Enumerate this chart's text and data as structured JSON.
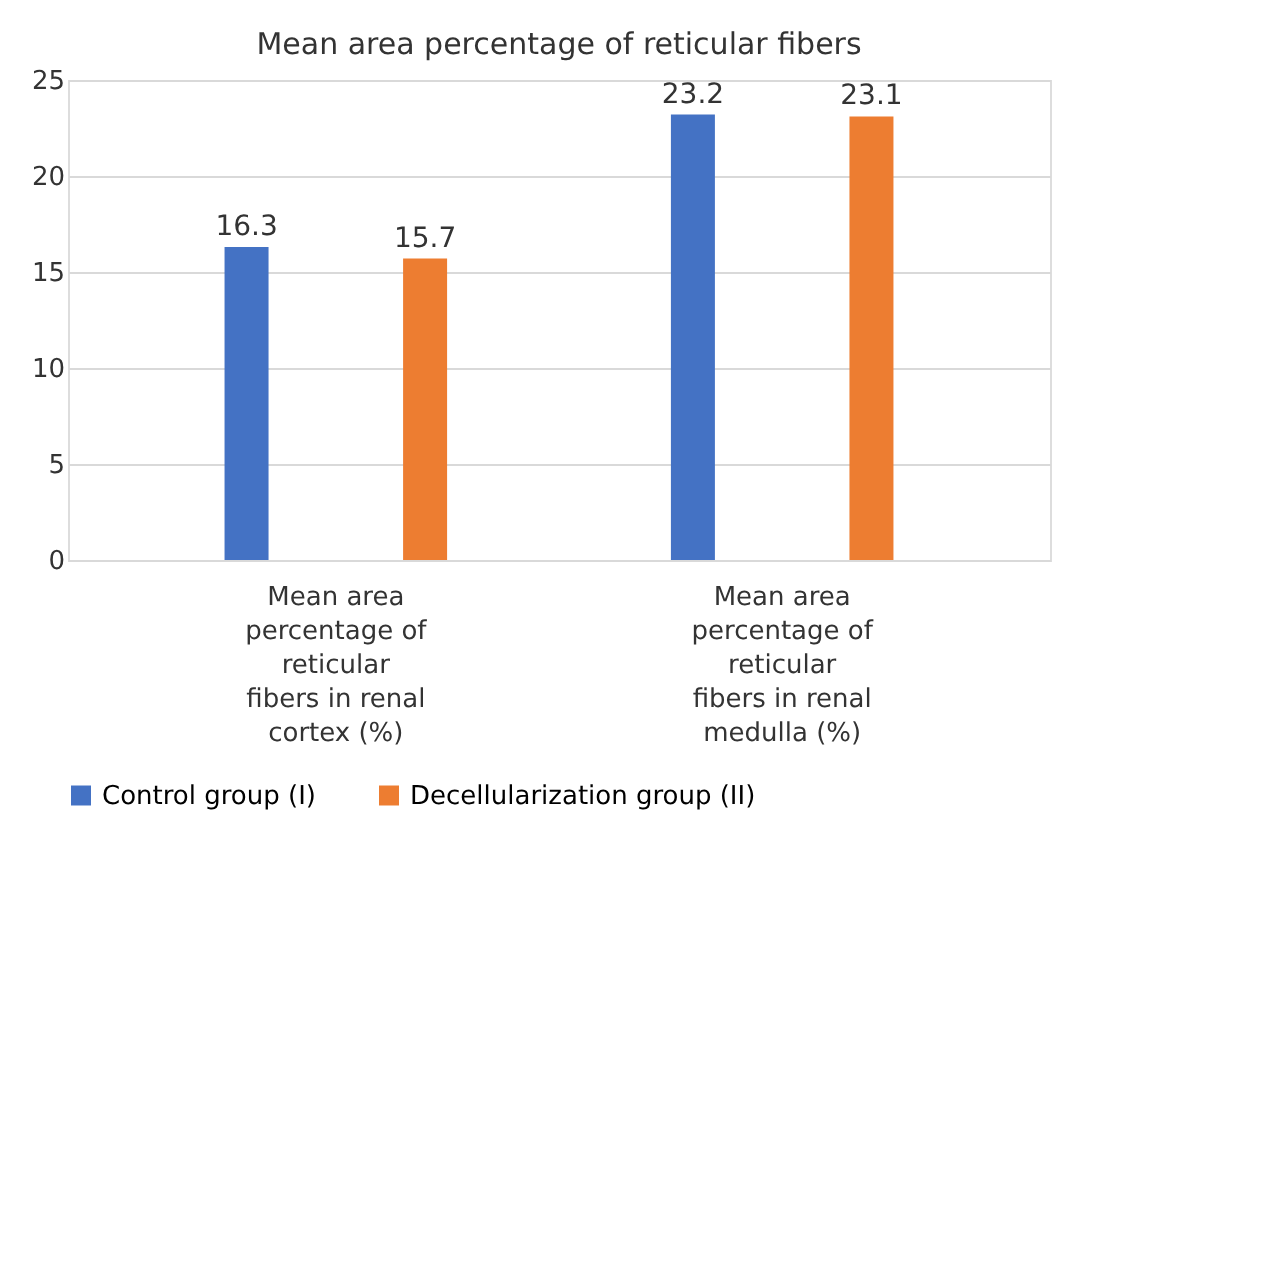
{
  "chart_data": {
    "type": "bar",
    "title": "Mean area percentage of reticular fibers",
    "categories": [
      "Mean area percentage of reticular fibers in renal cortex (%)",
      "Mean area percentage of reticular fibers in renal medulla (%)"
    ],
    "series": [
      {
        "name": "Control group (I)",
        "color": "#4472c4",
        "values": [
          16.3,
          23.2
        ]
      },
      {
        "name": "Decellularization group (II)",
        "color": "#ed7d31",
        "values": [
          15.7,
          23.1
        ]
      }
    ],
    "ylim": [
      0,
      25
    ],
    "yticks": [
      0,
      5,
      10,
      15,
      20,
      25
    ],
    "grid": "y",
    "legend": "bottom",
    "data_labels": true
  }
}
